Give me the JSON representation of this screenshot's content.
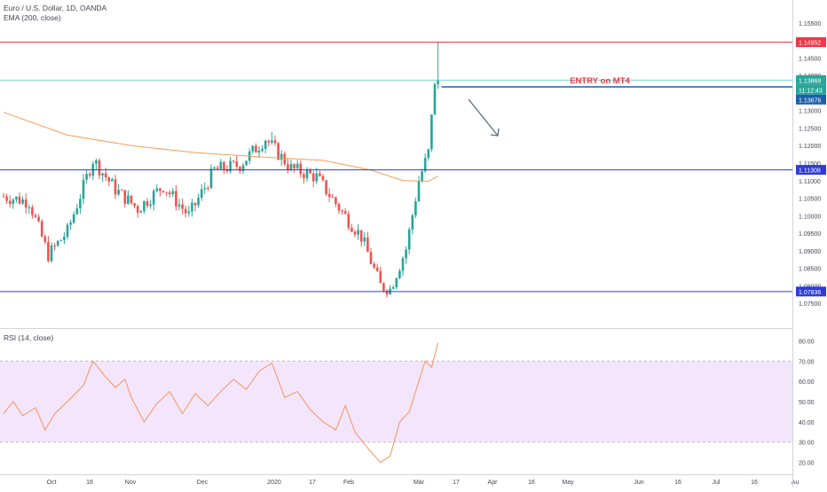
{
  "header": {
    "symbol": "Euro / U.S. Dollar, 1D, OANDA",
    "ema_label": "EMA (200, close)",
    "rsi_label": "RSI (14, close)"
  },
  "colors": {
    "up": "#26a69a",
    "down": "#ef5350",
    "ema": "#f79c59",
    "rsi_line": "#f7925a",
    "rsi_band": "#f3e6fc",
    "resistance": "#f23645",
    "support": "#2e3bd6",
    "entry_line": "#1e5fa8",
    "entry_text": "#f23645",
    "arrow": "#5b6f86",
    "axis_text": "#434651"
  },
  "chart_data": [
    {
      "type": "candlestick",
      "symbol": "Euro / U.S. Dollar",
      "timeframe": "1D",
      "source": "OANDA",
      "ylim": [
        1.0725,
        1.1575
      ],
      "y_ticks": [
        "1.15500",
        "1.15000",
        "1.14500",
        "1.14000",
        "1.13500",
        "1.13000",
        "1.12500",
        "1.12000",
        "1.11500",
        "1.11000",
        "1.10500",
        "1.10000",
        "1.09500",
        "1.09000",
        "1.08500",
        "1.08000",
        "1.07500"
      ],
      "x_ticks": [
        "Oct",
        "16",
        "Nov",
        "Dec",
        "2020",
        "17",
        "Feb",
        "Mar",
        "17",
        "Apr",
        "16",
        "May",
        "Jun",
        "16",
        "Jul",
        "16",
        "Au"
      ],
      "close_path": [
        {
          "bar": 0,
          "close": 1.1055
        },
        {
          "bar": 8,
          "close": 1.104
        },
        {
          "bar": 14,
          "close": 1.0888
        },
        {
          "bar": 20,
          "close": 1.0955
        },
        {
          "bar": 28,
          "close": 1.116
        },
        {
          "bar": 35,
          "close": 1.1075
        },
        {
          "bar": 42,
          "close": 1.102
        },
        {
          "bar": 50,
          "close": 1.1085
        },
        {
          "bar": 58,
          "close": 1.1
        },
        {
          "bar": 66,
          "close": 1.113
        },
        {
          "bar": 74,
          "close": 1.1145
        },
        {
          "bar": 82,
          "close": 1.122
        },
        {
          "bar": 90,
          "close": 1.1135
        },
        {
          "bar": 98,
          "close": 1.111
        },
        {
          "bar": 106,
          "close": 1.101
        },
        {
          "bar": 112,
          "close": 1.094
        },
        {
          "bar": 118,
          "close": 1.08
        },
        {
          "bar": 121,
          "close": 1.079
        },
        {
          "bar": 126,
          "close": 1.0905
        },
        {
          "bar": 130,
          "close": 1.11
        },
        {
          "bar": 133,
          "close": 1.118
        },
        {
          "bar": 135,
          "close": 1.1375
        },
        {
          "bar": 136,
          "close": 1.13869
        }
      ],
      "extremes": [
        {
          "bar": 84,
          "high": 1.1239
        },
        {
          "bar": 121,
          "low": 1.0778
        },
        {
          "bar": 136,
          "high": 1.14952
        }
      ],
      "ema200": [
        {
          "bar": 0,
          "value": 1.1295
        },
        {
          "bar": 20,
          "value": 1.123
        },
        {
          "bar": 40,
          "value": 1.12
        },
        {
          "bar": 60,
          "value": 1.118
        },
        {
          "bar": 80,
          "value": 1.1168
        },
        {
          "bar": 100,
          "value": 1.1158
        },
        {
          "bar": 115,
          "value": 1.113
        },
        {
          "bar": 125,
          "value": 1.11
        },
        {
          "bar": 133,
          "value": 1.1098
        },
        {
          "bar": 136,
          "value": 1.1113
        }
      ],
      "horizontal_levels": [
        {
          "name": "resistance",
          "value": 1.14952,
          "label": "1.14952"
        },
        {
          "name": "last",
          "value": 1.13869,
          "label": "1.13869"
        },
        {
          "name": "countdown",
          "label": "11:12:43"
        },
        {
          "name": "entry",
          "value": 1.13676,
          "label": "1.13676"
        },
        {
          "name": "support-mid",
          "value": 1.11308,
          "label": "1.11308"
        },
        {
          "name": "support-low",
          "value": 1.07836,
          "label": "1.07836"
        }
      ],
      "annotation": {
        "text": "ENTRY on MT4",
        "arrow": "down-right"
      }
    },
    {
      "type": "line",
      "ylim": [
        15,
        85
      ],
      "y_ticks": [
        "80.00",
        "70.00",
        "60.00",
        "50.00",
        "40.00",
        "30.00",
        "20.00"
      ],
      "band": [
        30,
        70
      ],
      "values": [
        {
          "bar": 0,
          "value": 44
        },
        {
          "bar": 3,
          "value": 50
        },
        {
          "bar": 6,
          "value": 43
        },
        {
          "bar": 10,
          "value": 47
        },
        {
          "bar": 13,
          "value": 36
        },
        {
          "bar": 16,
          "value": 44
        },
        {
          "bar": 20,
          "value": 50
        },
        {
          "bar": 25,
          "value": 58
        },
        {
          "bar": 28,
          "value": 70
        },
        {
          "bar": 32,
          "value": 62
        },
        {
          "bar": 35,
          "value": 57
        },
        {
          "bar": 38,
          "value": 61
        },
        {
          "bar": 40,
          "value": 52
        },
        {
          "bar": 44,
          "value": 40
        },
        {
          "bar": 48,
          "value": 49
        },
        {
          "bar": 52,
          "value": 55
        },
        {
          "bar": 56,
          "value": 44
        },
        {
          "bar": 60,
          "value": 54
        },
        {
          "bar": 64,
          "value": 48
        },
        {
          "bar": 68,
          "value": 55
        },
        {
          "bar": 72,
          "value": 61
        },
        {
          "bar": 76,
          "value": 56
        },
        {
          "bar": 80,
          "value": 65
        },
        {
          "bar": 84,
          "value": 69
        },
        {
          "bar": 88,
          "value": 52
        },
        {
          "bar": 92,
          "value": 55
        },
        {
          "bar": 96,
          "value": 46
        },
        {
          "bar": 100,
          "value": 40
        },
        {
          "bar": 104,
          "value": 36
        },
        {
          "bar": 107,
          "value": 48
        },
        {
          "bar": 110,
          "value": 35
        },
        {
          "bar": 114,
          "value": 27
        },
        {
          "bar": 118,
          "value": 20
        },
        {
          "bar": 121,
          "value": 23
        },
        {
          "bar": 124,
          "value": 40
        },
        {
          "bar": 127,
          "value": 45
        },
        {
          "bar": 130,
          "value": 60
        },
        {
          "bar": 132,
          "value": 70
        },
        {
          "bar": 134,
          "value": 67
        },
        {
          "bar": 136,
          "value": 79
        }
      ]
    }
  ]
}
